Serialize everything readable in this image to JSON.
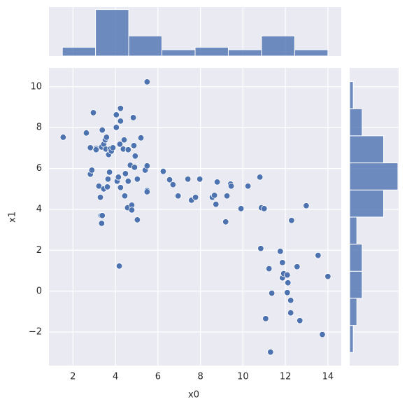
{
  "chart_data": {
    "type": "scatter",
    "xlabel": "x0",
    "ylabel": "x1",
    "color": "#4c72b0",
    "grid": true,
    "xlim": [
      0.87,
      14.63
    ],
    "ylim": [
      -3.64,
      10.92
    ],
    "xticks": [
      2,
      4,
      6,
      8,
      10,
      12,
      14
    ],
    "yticks": [
      {
        "value": -2,
        "label": "−2"
      },
      0,
      2,
      4,
      6,
      8,
      10
    ],
    "x": [
      1.54,
      2.63,
      2.96,
      2.82,
      2.82,
      2.89,
      3.09,
      3.09,
      3.22,
      3.29,
      3.32,
      3.38,
      3.35,
      3.35,
      3.38,
      3.45,
      3.45,
      3.52,
      3.55,
      3.58,
      3.62,
      3.65,
      3.68,
      3.72,
      3.75,
      3.81,
      3.88,
      4.04,
      4.04,
      4.08,
      4.14,
      4.18,
      4.21,
      4.24,
      4.24,
      4.24,
      4.37,
      4.41,
      4.44,
      4.47,
      4.57,
      4.6,
      4.6,
      4.7,
      4.77,
      4.77,
      4.84,
      4.87,
      4.9,
      4.93,
      5.03,
      5.03,
      5.2,
      5.4,
      5.49,
      5.49,
      5.49,
      5.49,
      6.25,
      6.55,
      6.71,
      6.95,
      7.41,
      7.58,
      7.77,
      7.97,
      8.56,
      8.66,
      8.73,
      8.79,
      9.19,
      9.25,
      9.42,
      9.45,
      9.91,
      10.24,
      10.8,
      10.87,
      11.0,
      10.84,
      11.07,
      11.23,
      11.3,
      11.36,
      11.76,
      11.86,
      11.86,
      11.92,
      12.09,
      12.09,
      12.12,
      12.25,
      12.25,
      12.29,
      12.55,
      12.68,
      12.98,
      13.54,
      13.74,
      14.0
    ],
    "y": [
      7.53,
      7.74,
      8.73,
      7.02,
      5.72,
      5.92,
      6.99,
      6.92,
      5.14,
      4.59,
      3.7,
      3.7,
      3.32,
      7.05,
      7.88,
      7.19,
      5.0,
      7.4,
      6.95,
      7.53,
      5.1,
      5.48,
      6.68,
      5.82,
      6.95,
      6.85,
      7.02,
      8.63,
      8.01,
      5.38,
      5.58,
      1.23,
      7.19,
      8.94,
      8.32,
      5.07,
      6.95,
      7.4,
      4.66,
      5.75,
      4.08,
      5.38,
      6.92,
      6.16,
      4.21,
      3.97,
      8.49,
      7.12,
      6.06,
      6.61,
      5.48,
      3.49,
      7.5,
      5.92,
      10.24,
      6.13,
      4.93,
      4.86,
      5.86,
      5.45,
      5.21,
      4.66,
      5.48,
      4.45,
      4.59,
      5.48,
      4.59,
      4.69,
      4.25,
      5.34,
      3.39,
      4.66,
      5.24,
      5.14,
      4.04,
      5.14,
      5.58,
      4.08,
      4.04,
      2.09,
      -1.34,
      1.1,
      -2.98,
      -0.1,
      1.95,
      1.4,
      0.65,
      0.86,
      0.79,
      -0.07,
      0.41,
      -0.45,
      -1.06,
      3.46,
      1.2,
      -1.44,
      4.18,
      1.75,
      -2.12,
      0.72
    ],
    "x_hist": {
      "bins": [
        1.5,
        3.0625,
        4.625,
        6.1875,
        7.75,
        9.3125,
        10.875,
        12.4375,
        14
      ],
      "counts": [
        7,
        37,
        16,
        5,
        7,
        5,
        16,
        5
      ],
      "ylim": [
        0,
        39
      ]
    },
    "y_hist": {
      "bins": [
        -3,
        -1.675,
        -0.35,
        0.975,
        2.3,
        3.625,
        4.95,
        6.275,
        7.6,
        8.925,
        10.25
      ],
      "counts": [
        2,
        4,
        7,
        7,
        4,
        19,
        27,
        19,
        7,
        2
      ],
      "xlim": [
        0,
        27.4
      ]
    }
  }
}
